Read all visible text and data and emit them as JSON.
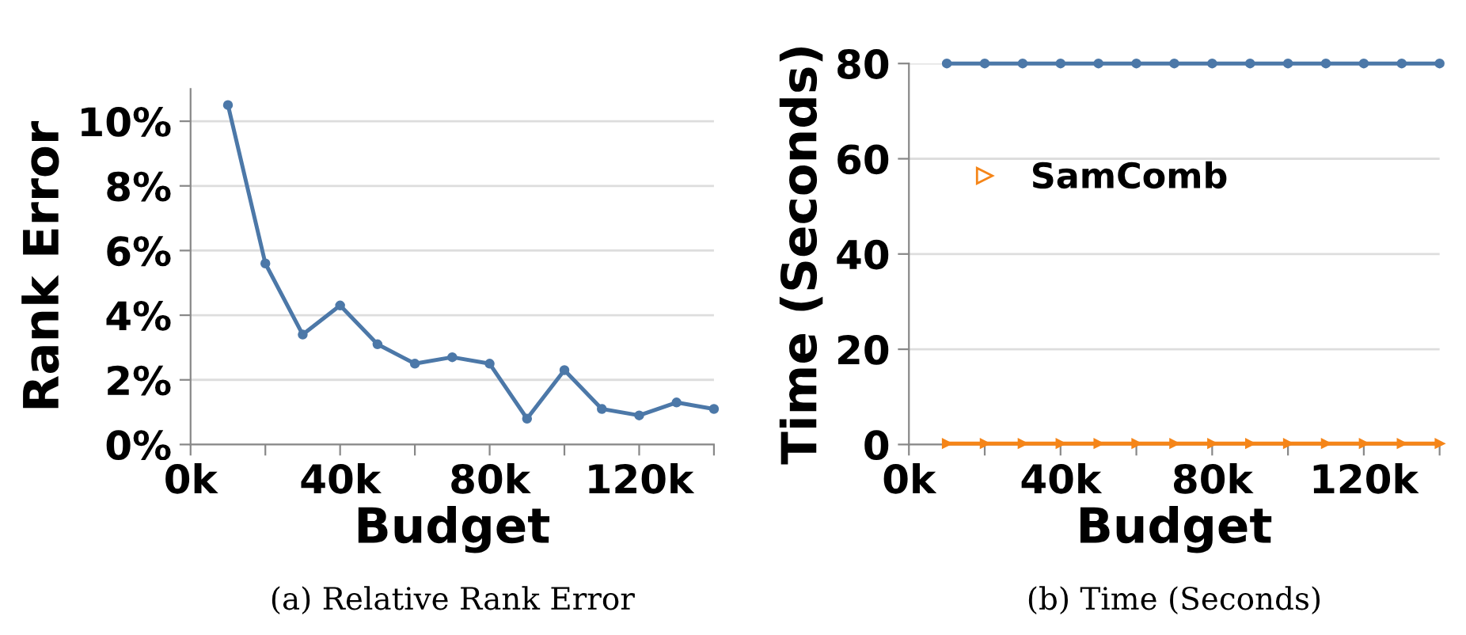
{
  "chart_data": [
    {
      "type": "line",
      "xlabel": "Budget",
      "ylabel": "Rank Error",
      "annotations": [
        "(a) Relative Rank Error"
      ],
      "x": [
        10000,
        20000,
        30000,
        40000,
        50000,
        60000,
        70000,
        80000,
        90000,
        100000,
        110000,
        120000,
        130000,
        140000
      ],
      "series": [
        {
          "color": "#4c78a8",
          "values": [
            10.5,
            5.6,
            3.4,
            4.3,
            3.1,
            2.5,
            2.7,
            2.5,
            0.8,
            2.3,
            1.1,
            0.9,
            1.3,
            1.1
          ]
        }
      ],
      "xlim": [
        0,
        140000
      ],
      "xticks": [
        {
          "value": 0,
          "label": "0k"
        },
        {
          "value": 20000,
          "label": null
        },
        {
          "value": 40000,
          "label": "40k"
        },
        {
          "value": 60000,
          "label": null
        },
        {
          "value": 80000,
          "label": "80k"
        },
        {
          "value": 100000,
          "label": null
        },
        {
          "value": 120000,
          "label": "120k"
        },
        {
          "value": 140000,
          "label": null
        }
      ],
      "ylim": [
        0,
        11
      ],
      "yticks": [
        {
          "value": 0,
          "label": "0%"
        },
        {
          "value": 2,
          "label": "2%"
        },
        {
          "value": 4,
          "label": "4%"
        },
        {
          "value": 6,
          "label": "6%"
        },
        {
          "value": 8,
          "label": "8%"
        },
        {
          "value": 10,
          "label": "10%"
        }
      ],
      "grid": "y",
      "marker": "circle",
      "line_style": "solid"
    },
    {
      "type": "line",
      "xlabel": "Budget",
      "ylabel": "Time (Seconds)",
      "annotations": [
        "(b) Time (Seconds)"
      ],
      "x": [
        10000,
        20000,
        30000,
        40000,
        50000,
        60000,
        70000,
        80000,
        90000,
        100000,
        110000,
        120000,
        130000,
        140000
      ],
      "series": [
        {
          "color": "#4c78a8",
          "marker": "circle",
          "values": [
            80,
            80,
            80,
            80,
            80,
            80,
            80,
            80,
            80,
            80,
            80,
            80,
            80,
            80
          ]
        },
        {
          "name": "SamComb",
          "color": "#f58518",
          "marker": "triangle",
          "values": [
            0.2,
            0.2,
            0.2,
            0.2,
            0.2,
            0.2,
            0.2,
            0.2,
            0.2,
            0.2,
            0.2,
            0.2,
            0.2,
            0.2
          ]
        }
      ],
      "xlim": [
        0,
        140000
      ],
      "xticks": [
        {
          "value": 0,
          "label": "0k"
        },
        {
          "value": 20000,
          "label": null
        },
        {
          "value": 40000,
          "label": "40k"
        },
        {
          "value": 60000,
          "label": null
        },
        {
          "value": 80000,
          "label": "80k"
        },
        {
          "value": 100000,
          "label": null
        },
        {
          "value": 120000,
          "label": "120k"
        },
        {
          "value": 140000,
          "label": null
        }
      ],
      "ylim": [
        0,
        80
      ],
      "yticks": [
        0,
        20,
        40,
        60,
        80
      ],
      "grid": "y",
      "legend": "top left",
      "line_style": "solid"
    }
  ]
}
